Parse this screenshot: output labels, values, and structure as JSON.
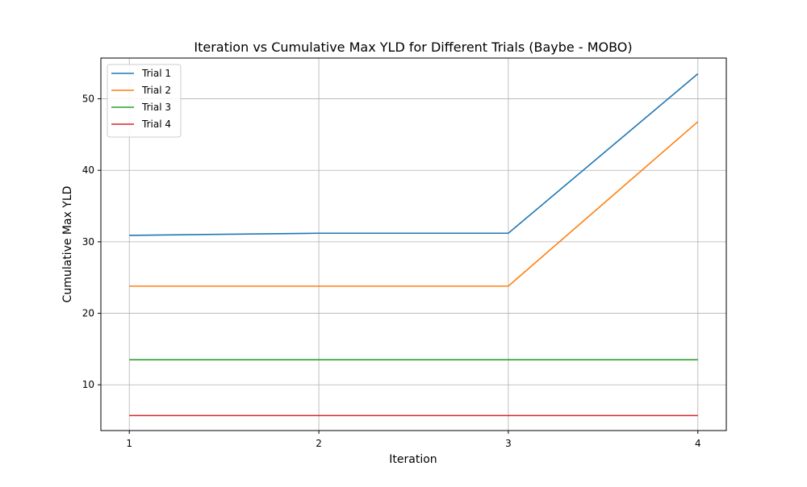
{
  "chart_data": {
    "type": "line",
    "title": "Iteration vs Cumulative Max YLD for Different Trials (Baybe - MOBO)",
    "xlabel": "Iteration",
    "ylabel": "Cumulative Max YLD",
    "x": [
      1,
      2,
      3,
      4
    ],
    "xticks": [
      "1",
      "2",
      "3",
      "4"
    ],
    "yticks": [
      "10",
      "20",
      "30",
      "40",
      "50"
    ],
    "xlim": [
      0.85,
      4.15
    ],
    "ylim": [
      3.6,
      55.7
    ],
    "grid": true,
    "legend_position": "top-left",
    "series": [
      {
        "name": "Trial 1",
        "color": "#1f77b4",
        "values": [
          30.9,
          31.2,
          31.2,
          53.5
        ]
      },
      {
        "name": "Trial 2",
        "color": "#ff7f0e",
        "values": [
          23.8,
          23.8,
          23.8,
          46.8
        ]
      },
      {
        "name": "Trial 3",
        "color": "#2ca02c",
        "values": [
          13.5,
          13.5,
          13.5,
          13.5
        ]
      },
      {
        "name": "Trial 4",
        "color": "#d62728",
        "values": [
          5.7,
          5.7,
          5.7,
          5.7
        ]
      }
    ]
  }
}
